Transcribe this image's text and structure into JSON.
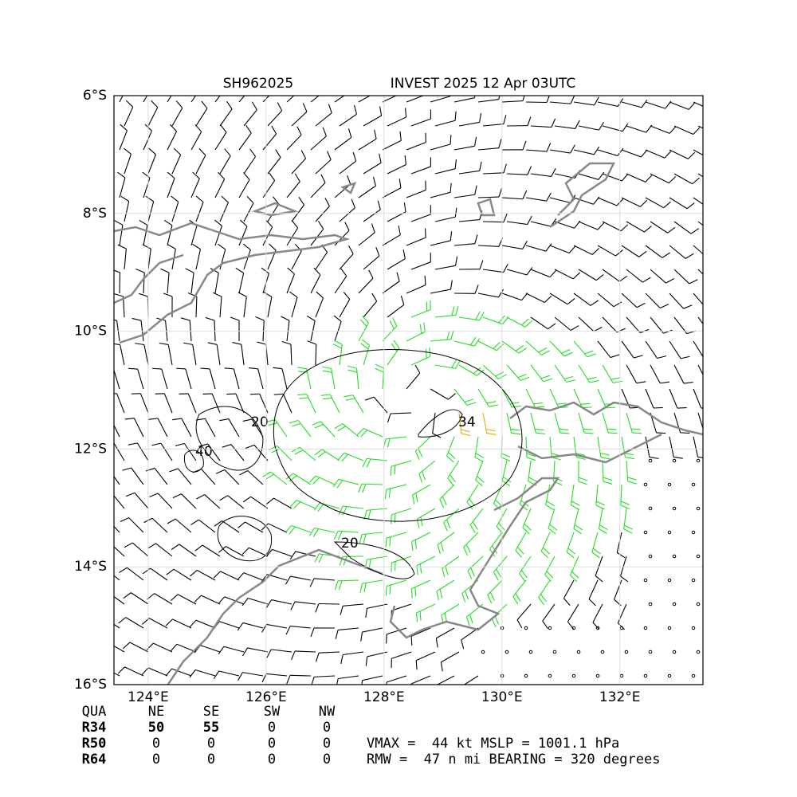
{
  "header": {
    "storm_id": "SH962025",
    "title": "INVEST 2025 12 Apr 03UTC"
  },
  "map": {
    "xlim": [
      123.42,
      133.41
    ],
    "ylim": [
      -16,
      -6
    ],
    "xticks": [
      {
        "value": 124,
        "label": "124°E"
      },
      {
        "value": 126,
        "label": "126°E"
      },
      {
        "value": 128,
        "label": "128°E"
      },
      {
        "value": 130,
        "label": "130°E"
      },
      {
        "value": 132,
        "label": "132°E"
      }
    ],
    "yticks": [
      {
        "value": -6,
        "label": "6°S"
      },
      {
        "value": -8,
        "label": "8°S"
      },
      {
        "value": -10,
        "label": "10°S"
      },
      {
        "value": -12,
        "label": "12°S"
      },
      {
        "value": -14,
        "label": "14°S"
      },
      {
        "value": -16,
        "label": "16°S"
      }
    ],
    "contour_labels": [
      "20",
      "34",
      "40",
      "20"
    ]
  },
  "table": {
    "columns": [
      "QUA",
      "NE",
      "SE",
      "SW",
      "NW"
    ],
    "rows": [
      [
        "R34",
        50,
        55,
        0,
        0
      ],
      [
        "R50",
        0,
        0,
        0,
        0
      ],
      [
        "R64",
        0,
        0,
        0,
        0
      ]
    ]
  },
  "info": [
    "VMAX =  44 kt MSLP = 1001.1 hPa",
    "RMW =  47 n mi BEARING = 320 degrees"
  ]
}
